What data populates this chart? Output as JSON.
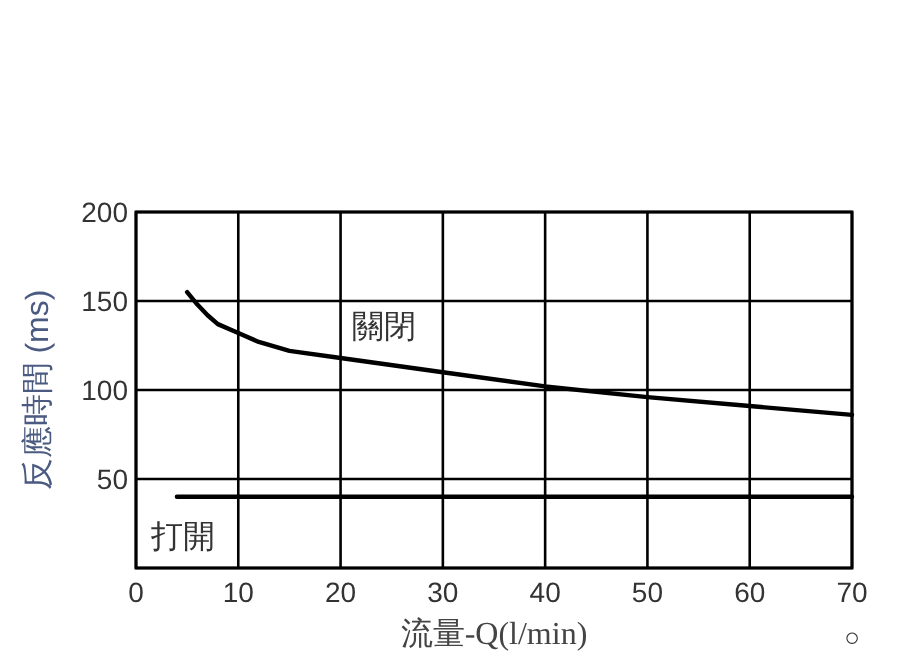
{
  "chart_data": {
    "type": "line",
    "xlabel": "流量-Q(l/min)",
    "ylabel": "反應時間 (ms)",
    "xlim": [
      0,
      70
    ],
    "ylim": [
      0,
      200
    ],
    "xticks": [
      0,
      10,
      20,
      30,
      40,
      50,
      60,
      70
    ],
    "yticks": [
      {
        "value": 0,
        "label": null
      },
      50,
      100,
      150,
      200
    ],
    "grid": true,
    "marker": "none",
    "line_style": "solid",
    "annotations": [
      "○"
    ],
    "series": [
      {
        "name": "關閉",
        "color": "#000000",
        "x": [
          5,
          6,
          7,
          8,
          10,
          12,
          15,
          20,
          30,
          40,
          50,
          60,
          70
        ],
        "values": [
          155,
          148,
          142,
          137,
          132,
          127,
          122,
          118,
          110,
          102,
          96,
          91,
          86
        ]
      },
      {
        "name": "打開",
        "color": "#000000",
        "x": [
          4,
          70
        ],
        "values": [
          40,
          40
        ]
      }
    ]
  }
}
